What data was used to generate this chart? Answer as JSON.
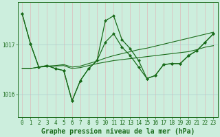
{
  "background_color": "#cceedd",
  "plot_bg_color": "#cceedd",
  "grid_v_color": "#ddbbbb",
  "grid_h_color": "#aacccc",
  "line_color": "#1a6b1a",
  "xlabel": "Graphe pression niveau de la mer (hPa)",
  "xlabel_fontsize": 7.0,
  "tick_fontsize": 5.5,
  "ylim": [
    1015.55,
    1017.85
  ],
  "xlim": [
    -0.5,
    23.5
  ],
  "yticks": [
    1016.0,
    1017.0
  ],
  "xticks": [
    0,
    1,
    2,
    3,
    4,
    5,
    6,
    7,
    8,
    9,
    10,
    11,
    12,
    13,
    14,
    15,
    16,
    17,
    18,
    19,
    20,
    21,
    22,
    23
  ],
  "series_main": [
    1017.62,
    1017.02,
    1016.55,
    1016.58,
    1016.52,
    1016.48,
    1015.87,
    1016.28,
    1016.52,
    1016.68,
    1017.48,
    1017.58,
    1017.1,
    1016.92,
    1016.68,
    1016.32,
    1016.38,
    1016.6,
    1016.62,
    1016.62,
    1016.78,
    1016.88,
    1017.05,
    1017.22
  ],
  "series_line1": [
    1016.52,
    1016.52,
    1016.55,
    1016.56,
    1016.57,
    1016.58,
    1016.52,
    1016.54,
    1016.58,
    1016.62,
    1016.65,
    1016.68,
    1016.7,
    1016.72,
    1016.74,
    1016.76,
    1016.78,
    1016.8,
    1016.82,
    1016.84,
    1016.86,
    1016.9,
    1016.95,
    1016.98
  ],
  "series_line2": [
    1016.52,
    1016.52,
    1016.55,
    1016.57,
    1016.58,
    1016.6,
    1016.55,
    1016.57,
    1016.62,
    1016.67,
    1016.73,
    1016.78,
    1016.82,
    1016.86,
    1016.9,
    1016.93,
    1016.97,
    1017.01,
    1017.05,
    1017.09,
    1017.13,
    1017.17,
    1017.21,
    1017.25
  ],
  "series_smooth": [
    1017.62,
    1017.02,
    1016.55,
    1016.58,
    1016.52,
    1016.48,
    1015.87,
    1016.28,
    1016.52,
    1016.68,
    1017.05,
    1017.22,
    1016.95,
    1016.78,
    1016.55,
    1016.32,
    1016.38,
    1016.6,
    1016.62,
    1016.62,
    1016.78,
    1016.88,
    1017.05,
    1017.22
  ]
}
